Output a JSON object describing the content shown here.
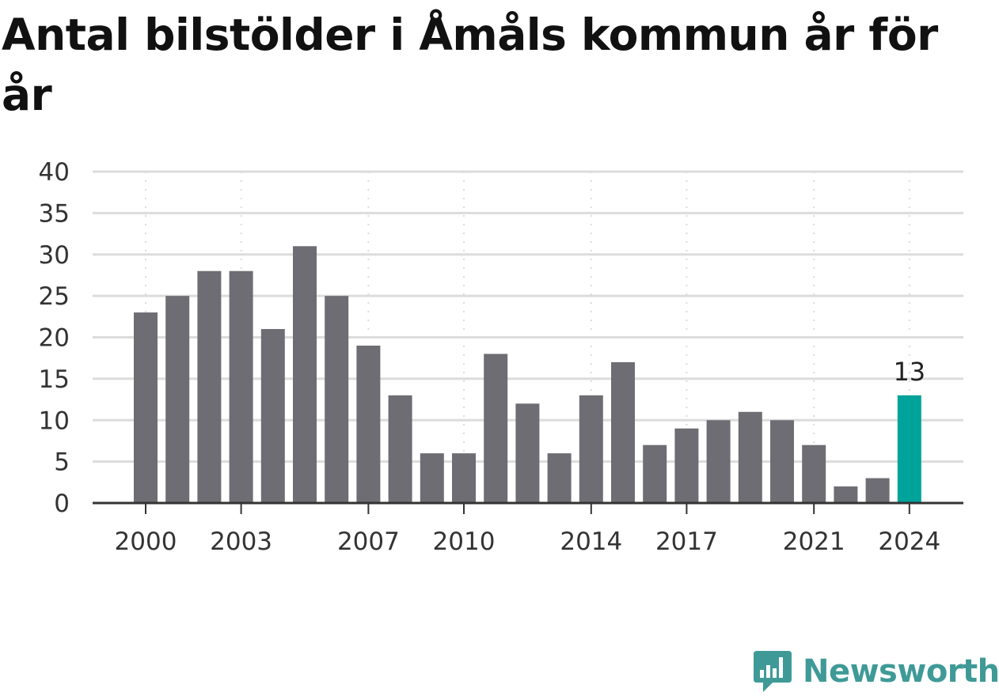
{
  "chart_data": {
    "type": "bar",
    "title": "Antal bilstölder i Åmåls kommun år för år",
    "x": [
      2000,
      2001,
      2002,
      2003,
      2004,
      2005,
      2006,
      2007,
      2008,
      2009,
      2010,
      2011,
      2012,
      2013,
      2014,
      2015,
      2016,
      2017,
      2018,
      2019,
      2020,
      2021,
      2022,
      2023,
      2024
    ],
    "values": [
      23,
      25,
      28,
      28,
      21,
      31,
      25,
      19,
      13,
      6,
      6,
      18,
      12,
      6,
      13,
      17,
      7,
      9,
      10,
      11,
      10,
      7,
      2,
      3,
      13
    ],
    "x_tick_labels": [
      "2000",
      "2003",
      "2007",
      "2010",
      "2014",
      "2017",
      "2021",
      "2024"
    ],
    "y_tick_labels": [
      "0",
      "5",
      "10",
      "15",
      "20",
      "25",
      "30",
      "35",
      "40"
    ],
    "ylim": [
      0,
      40
    ],
    "yticks": [
      0,
      5,
      10,
      15,
      20,
      25,
      30,
      35,
      40
    ],
    "grid": true,
    "highlight": {
      "year": 2024,
      "label": "13"
    },
    "colors": {
      "bar": "#6e6d73",
      "highlight": "#00a39a",
      "grid": "#dcdcdc",
      "axis": "#333333"
    }
  },
  "branding": {
    "logo_text": "Newsworthy",
    "logo_icon": "newsworthy-chart-bubble-icon",
    "logo_color": "#3f9a97"
  }
}
